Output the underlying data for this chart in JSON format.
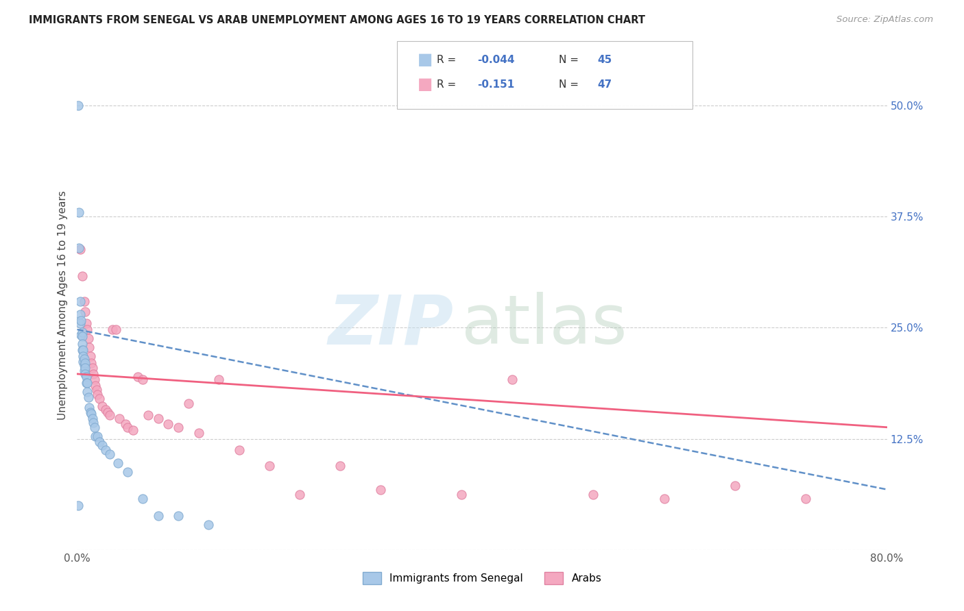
{
  "title": "IMMIGRANTS FROM SENEGAL VS ARAB UNEMPLOYMENT AMONG AGES 16 TO 19 YEARS CORRELATION CHART",
  "source": "Source: ZipAtlas.com",
  "ylabel": "Unemployment Among Ages 16 to 19 years",
  "xlim": [
    0.0,
    0.8
  ],
  "ylim": [
    0.0,
    0.55
  ],
  "x_ticks": [
    0.0,
    0.1,
    0.2,
    0.3,
    0.4,
    0.5,
    0.6,
    0.7,
    0.8
  ],
  "x_tick_labels": [
    "0.0%",
    "",
    "",
    "",
    "",
    "",
    "",
    "",
    "80.0%"
  ],
  "y_ticks": [
    0.0,
    0.125,
    0.25,
    0.375,
    0.5
  ],
  "y_tick_labels": [
    "",
    "12.5%",
    "25.0%",
    "37.5%",
    "50.0%"
  ],
  "background_color": "#ffffff",
  "grid_color": "#c8c8c8",
  "senegal_color": "#a8c8e8",
  "senegal_edge_color": "#80aad0",
  "arab_color": "#f4a8c0",
  "arab_edge_color": "#e080a0",
  "senegal_line_color": "#6090c8",
  "arab_line_color": "#f06080",
  "corr_text_color": "#4472c4",
  "legend_labels": [
    "Immigrants from Senegal",
    "Arabs"
  ],
  "senegal_x": [
    0.001,
    0.002,
    0.002,
    0.003,
    0.003,
    0.003,
    0.004,
    0.004,
    0.005,
    0.005,
    0.005,
    0.005,
    0.006,
    0.006,
    0.006,
    0.007,
    0.007,
    0.007,
    0.008,
    0.008,
    0.008,
    0.009,
    0.009,
    0.01,
    0.01,
    0.011,
    0.012,
    0.013,
    0.014,
    0.015,
    0.016,
    0.017,
    0.018,
    0.02,
    0.022,
    0.025,
    0.028,
    0.032,
    0.04,
    0.05,
    0.065,
    0.08,
    0.1,
    0.13,
    0.001
  ],
  "senegal_y": [
    0.5,
    0.38,
    0.34,
    0.28,
    0.265,
    0.255,
    0.258,
    0.242,
    0.245,
    0.24,
    0.232,
    0.225,
    0.225,
    0.218,
    0.212,
    0.215,
    0.208,
    0.202,
    0.21,
    0.205,
    0.198,
    0.195,
    0.188,
    0.188,
    0.178,
    0.172,
    0.16,
    0.155,
    0.153,
    0.148,
    0.143,
    0.138,
    0.128,
    0.128,
    0.122,
    0.118,
    0.112,
    0.108,
    0.098,
    0.088,
    0.058,
    0.038,
    0.038,
    0.028,
    0.05
  ],
  "arab_x": [
    0.003,
    0.005,
    0.007,
    0.008,
    0.009,
    0.01,
    0.011,
    0.012,
    0.013,
    0.014,
    0.015,
    0.016,
    0.017,
    0.018,
    0.019,
    0.02,
    0.022,
    0.025,
    0.028,
    0.03,
    0.032,
    0.035,
    0.038,
    0.042,
    0.048,
    0.05,
    0.055,
    0.06,
    0.065,
    0.07,
    0.08,
    0.09,
    0.1,
    0.11,
    0.12,
    0.14,
    0.16,
    0.19,
    0.22,
    0.26,
    0.3,
    0.38,
    0.43,
    0.51,
    0.58,
    0.65,
    0.72
  ],
  "arab_y": [
    0.338,
    0.308,
    0.28,
    0.268,
    0.255,
    0.248,
    0.238,
    0.228,
    0.218,
    0.21,
    0.205,
    0.198,
    0.192,
    0.185,
    0.18,
    0.175,
    0.17,
    0.162,
    0.158,
    0.155,
    0.152,
    0.248,
    0.248,
    0.148,
    0.142,
    0.138,
    0.135,
    0.195,
    0.192,
    0.152,
    0.148,
    0.142,
    0.138,
    0.165,
    0.132,
    0.192,
    0.112,
    0.095,
    0.062,
    0.095,
    0.068,
    0.062,
    0.192,
    0.062,
    0.058,
    0.072,
    0.058
  ],
  "senegal_trend_x0": 0.0,
  "senegal_trend_y0": 0.248,
  "senegal_trend_x1": 0.8,
  "senegal_trend_y1": 0.068,
  "arab_trend_x0": 0.0,
  "arab_trend_y0": 0.198,
  "arab_trend_x1": 0.8,
  "arab_trend_y1": 0.138
}
